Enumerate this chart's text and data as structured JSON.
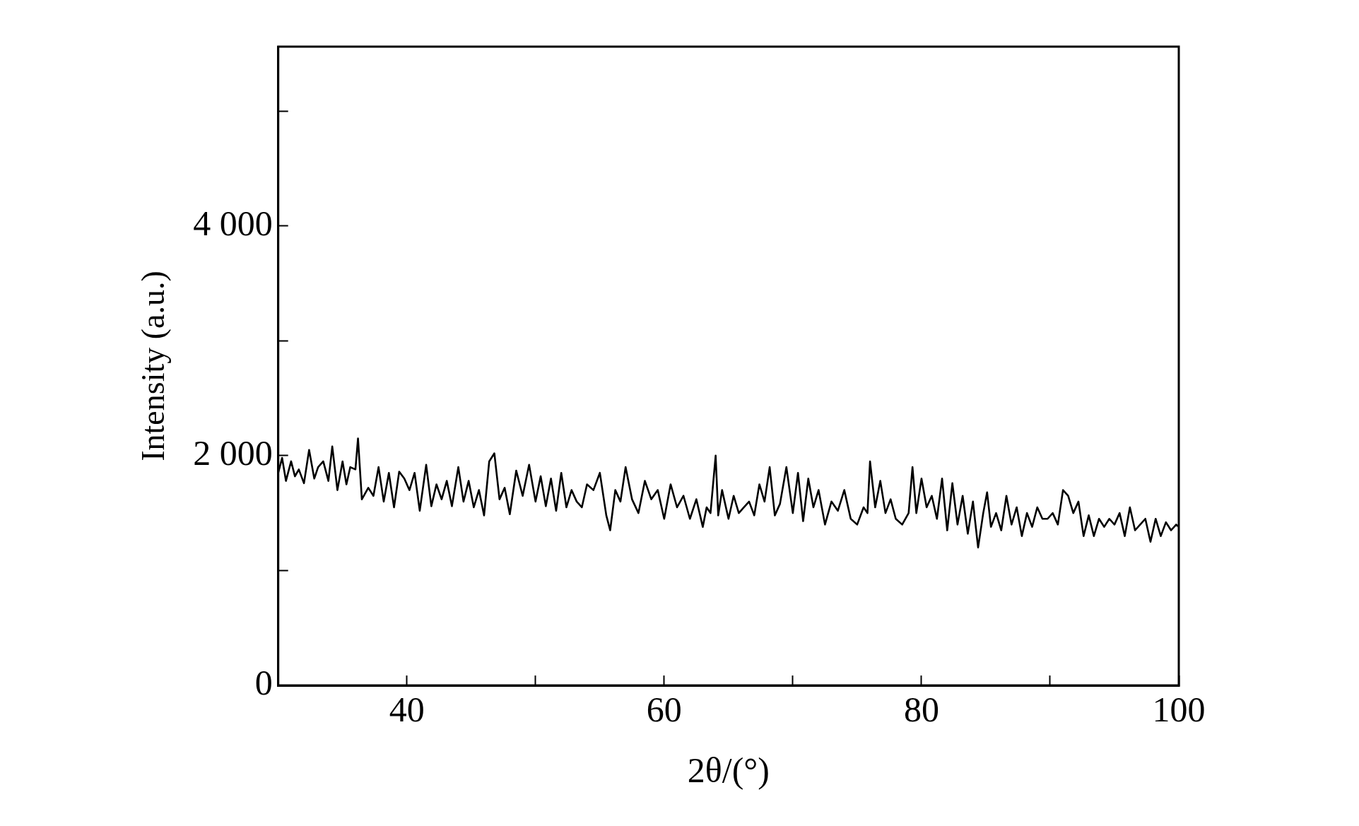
{
  "chart_data": {
    "type": "line",
    "xlabel": "2θ/(°)",
    "ylabel": "Intensity (a.u.)",
    "xlim": [
      30,
      100
    ],
    "ylim": [
      0,
      5560
    ],
    "xticks": [
      40,
      {
        "value": 50,
        "label": null
      },
      60,
      {
        "value": 70,
        "label": null
      },
      80,
      {
        "value": 90,
        "label": null
      },
      100
    ],
    "yticks": [
      {
        "value": 0,
        "label": "0"
      },
      {
        "value": 1000,
        "label": null
      },
      {
        "value": 2000,
        "label": "2 000"
      },
      {
        "value": 3000,
        "label": null
      },
      {
        "value": 4000,
        "label": "4 000"
      },
      {
        "value": 5000,
        "label": null
      }
    ],
    "grid": false,
    "legend": false,
    "marker": "none",
    "line_style": "solid",
    "series": [
      {
        "color": "#000000",
        "x": [
          30,
          30.3,
          30.6,
          31,
          31.3,
          31.6,
          32,
          32.4,
          32.8,
          33.1,
          33.5,
          33.9,
          34.2,
          34.6,
          35,
          35.3,
          35.6,
          36,
          36.2,
          36.5,
          37,
          37.4,
          37.8,
          38.2,
          38.6,
          39,
          39.4,
          39.8,
          40.2,
          40.6,
          41,
          41.5,
          41.9,
          42.3,
          42.7,
          43.1,
          43.5,
          44,
          44.4,
          44.8,
          45.2,
          45.6,
          46,
          46.4,
          46.8,
          47.2,
          47.6,
          48,
          48.5,
          49,
          49.5,
          50,
          50.4,
          50.8,
          51.2,
          51.6,
          52,
          52.4,
          52.8,
          53.2,
          53.6,
          54,
          54.5,
          55,
          55.5,
          55.8,
          56.2,
          56.6,
          57,
          57.5,
          58,
          58.5,
          59,
          59.5,
          60,
          60.5,
          61,
          61.5,
          62,
          62.5,
          63,
          63.3,
          63.6,
          64,
          64.2,
          64.5,
          65,
          65.4,
          65.8,
          66.2,
          66.6,
          67,
          67.4,
          67.8,
          68.2,
          68.6,
          69,
          69.5,
          70,
          70.4,
          70.8,
          71.2,
          71.6,
          72,
          72.5,
          73,
          73.5,
          74,
          74.5,
          75,
          75.5,
          75.8,
          76,
          76.4,
          76.8,
          77.2,
          77.6,
          78,
          78.5,
          79,
          79.3,
          79.6,
          80,
          80.4,
          80.8,
          81.2,
          81.6,
          82,
          82.4,
          82.8,
          83.2,
          83.6,
          84,
          84.4,
          84.8,
          85.1,
          85.4,
          85.8,
          86.2,
          86.6,
          87,
          87.4,
          87.8,
          88.2,
          88.6,
          89,
          89.4,
          89.8,
          90.2,
          90.6,
          91,
          91.4,
          91.8,
          92.2,
          92.6,
          93,
          93.4,
          93.8,
          94.2,
          94.6,
          95,
          95.4,
          95.8,
          96.2,
          96.6,
          97,
          97.4,
          97.8,
          98.2,
          98.6,
          99,
          99.4,
          99.8,
          100
        ],
        "values": [
          1850,
          1980,
          1780,
          1950,
          1820,
          1880,
          1760,
          2050,
          1800,
          1900,
          1950,
          1780,
          2080,
          1700,
          1950,
          1750,
          1900,
          1880,
          2150,
          1620,
          1720,
          1650,
          1900,
          1600,
          1850,
          1550,
          1860,
          1800,
          1700,
          1850,
          1520,
          1920,
          1560,
          1750,
          1620,
          1780,
          1560,
          1900,
          1600,
          1780,
          1550,
          1700,
          1480,
          1950,
          2020,
          1620,
          1720,
          1490,
          1870,
          1650,
          1920,
          1600,
          1820,
          1560,
          1800,
          1520,
          1850,
          1550,
          1700,
          1600,
          1550,
          1750,
          1700,
          1850,
          1480,
          1350,
          1700,
          1600,
          1900,
          1620,
          1500,
          1780,
          1620,
          1700,
          1450,
          1750,
          1550,
          1650,
          1450,
          1620,
          1380,
          1550,
          1500,
          2000,
          1480,
          1700,
          1450,
          1650,
          1500,
          1550,
          1600,
          1480,
          1750,
          1600,
          1900,
          1480,
          1580,
          1900,
          1500,
          1850,
          1430,
          1800,
          1550,
          1700,
          1400,
          1600,
          1520,
          1700,
          1450,
          1400,
          1550,
          1500,
          1950,
          1550,
          1780,
          1500,
          1620,
          1450,
          1400,
          1500,
          1900,
          1500,
          1800,
          1550,
          1650,
          1450,
          1800,
          1350,
          1760,
          1400,
          1650,
          1320,
          1600,
          1200,
          1500,
          1680,
          1380,
          1500,
          1350,
          1650,
          1400,
          1550,
          1300,
          1500,
          1380,
          1550,
          1450,
          1450,
          1500,
          1400,
          1700,
          1650,
          1500,
          1600,
          1300,
          1480,
          1300,
          1450,
          1380,
          1450,
          1400,
          1500,
          1300,
          1550,
          1350,
          1400,
          1450,
          1250,
          1450,
          1300,
          1420,
          1350,
          1400,
          1380
        ]
      }
    ]
  }
}
